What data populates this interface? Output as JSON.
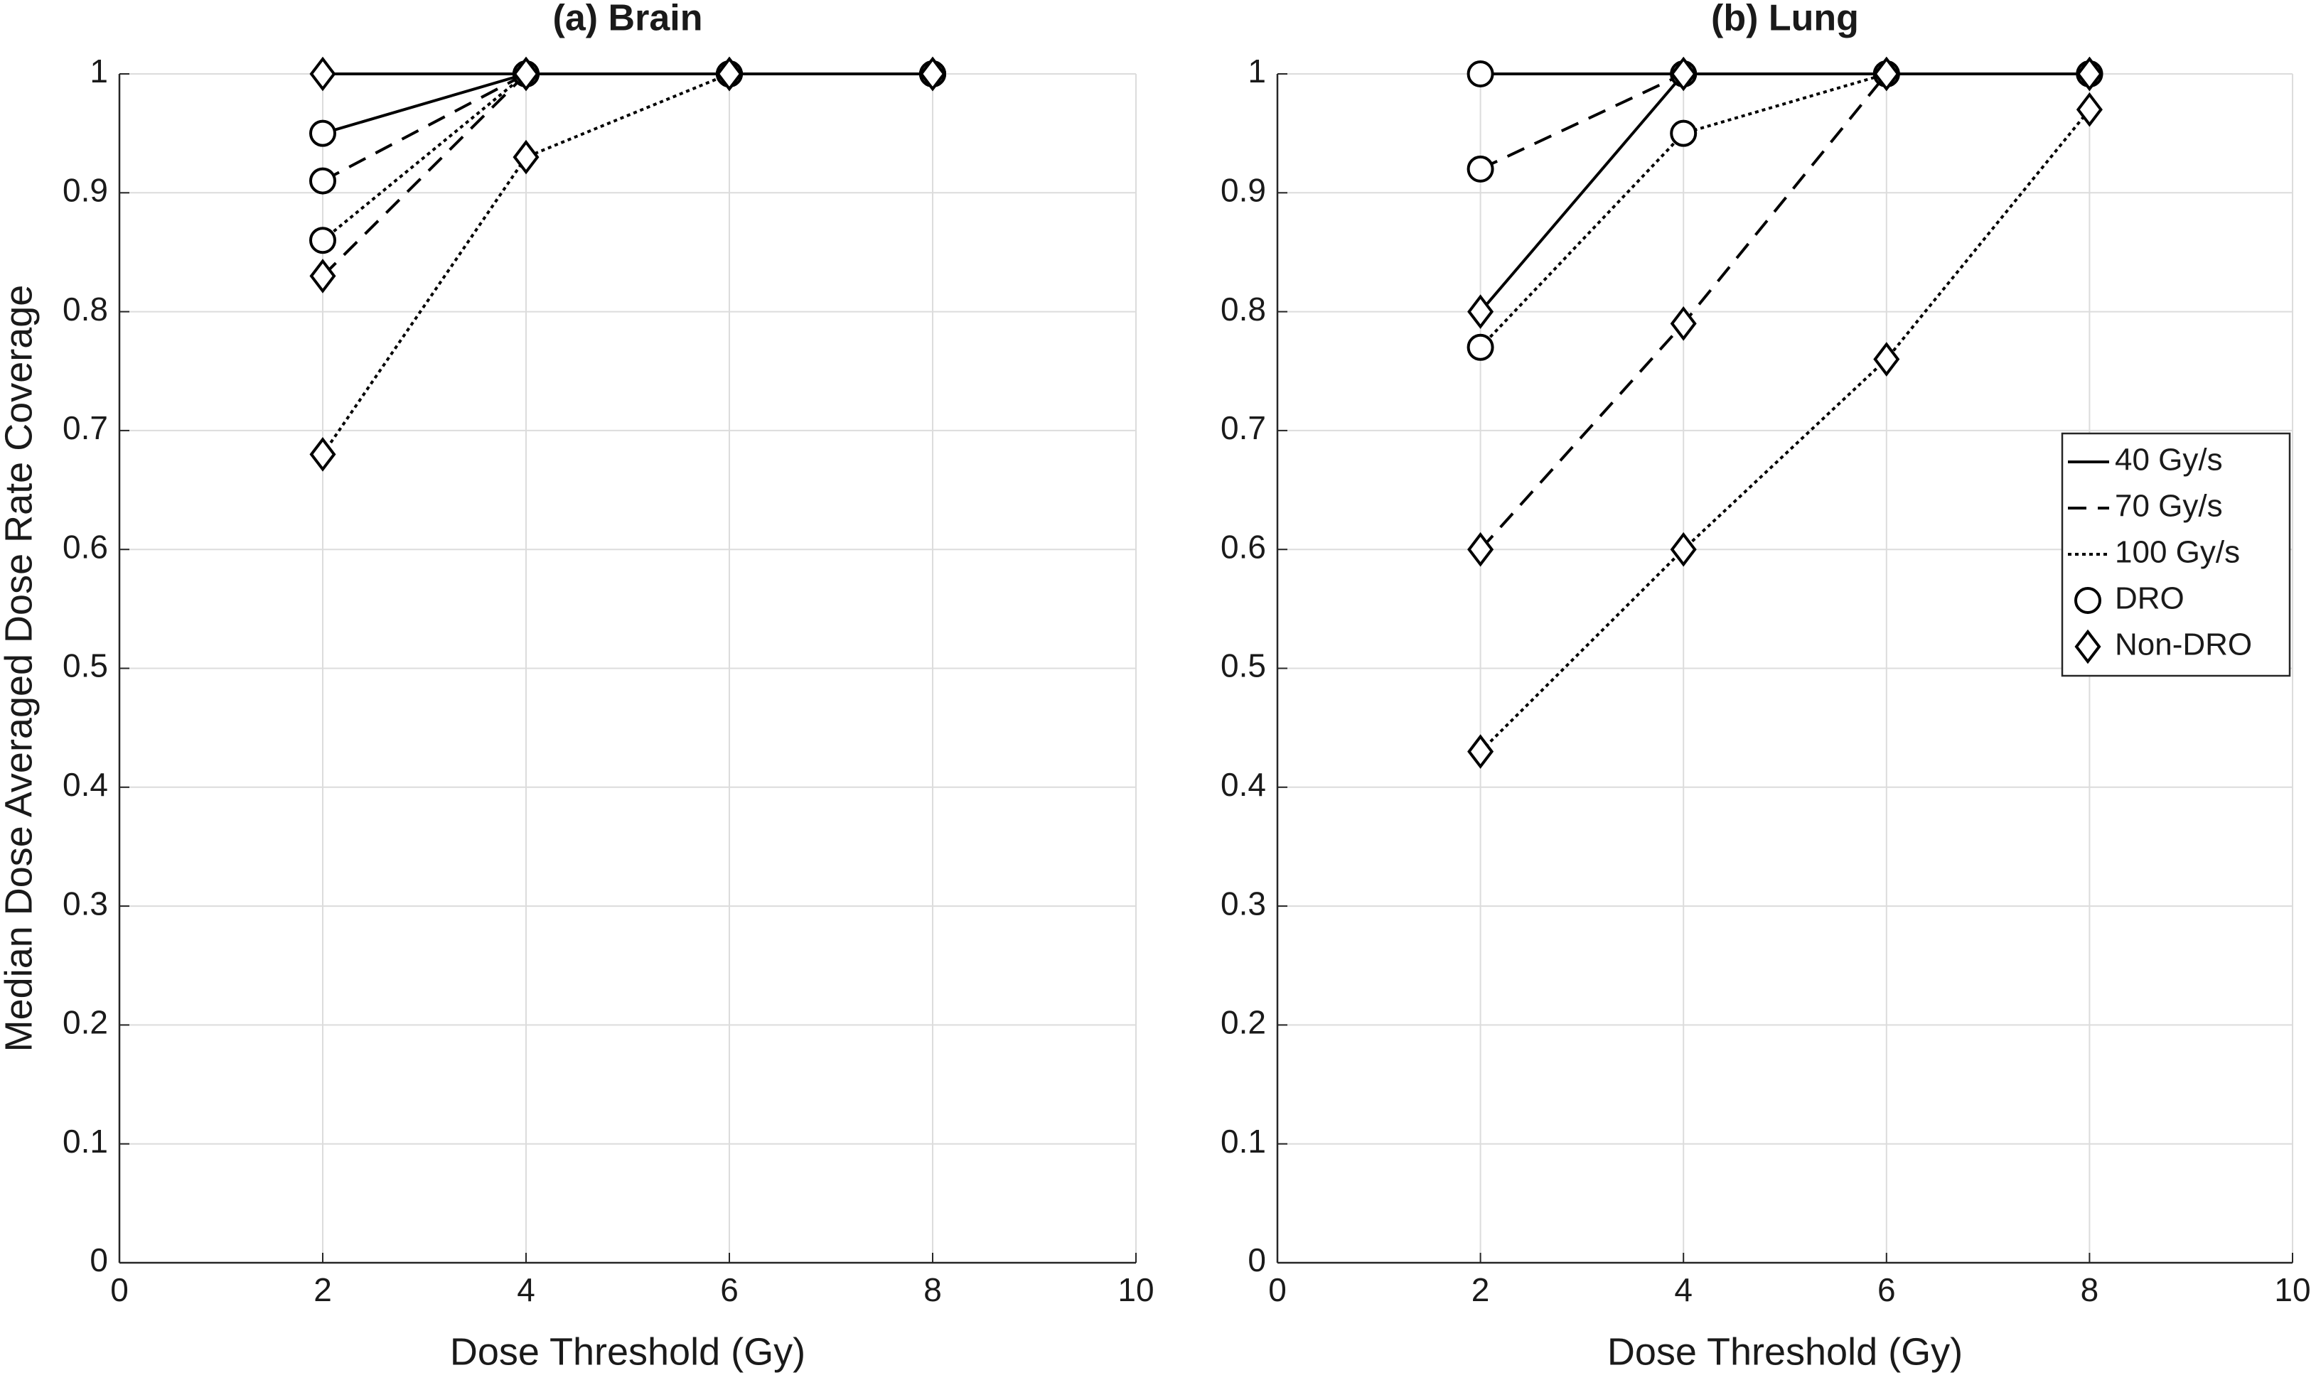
{
  "chart_data": [
    {
      "type": "line",
      "title": "(a) Brain",
      "xlabel": "Dose Threshold (Gy)",
      "ylabel": "Median Dose Averaged Dose Rate Coverage",
      "x": [
        2,
        4,
        6,
        8
      ],
      "xlim": [
        0,
        10
      ],
      "xticks": [
        0,
        2,
        4,
        6,
        8,
        10
      ],
      "ylim": [
        0,
        1
      ],
      "yticks": [
        0,
        0.1,
        0.2,
        0.3,
        0.4,
        0.5,
        0.6,
        0.7,
        0.8,
        0.9,
        1
      ],
      "grid": true,
      "series": [
        {
          "dash": "solid",
          "marker": "circle",
          "color": "#000000",
          "values": [
            0.95,
            1,
            1,
            1
          ]
        },
        {
          "dash": "dashed",
          "marker": "circle",
          "color": "#000000",
          "values": [
            0.91,
            1,
            1,
            1
          ]
        },
        {
          "dash": "dotted",
          "marker": "circle",
          "color": "#000000",
          "values": [
            0.86,
            1,
            1,
            1
          ]
        },
        {
          "dash": "solid",
          "marker": "diamond",
          "color": "#000000",
          "values": [
            1,
            1,
            1,
            1
          ]
        },
        {
          "dash": "dashed",
          "marker": "diamond",
          "color": "#000000",
          "values": [
            0.83,
            1,
            1,
            1
          ]
        },
        {
          "dash": "dotted",
          "marker": "diamond",
          "color": "#000000",
          "values": [
            0.68,
            0.93,
            1,
            1
          ]
        }
      ]
    },
    {
      "type": "line",
      "title": "(b) Lung",
      "xlabel": "Dose Threshold (Gy)",
      "x": [
        2,
        4,
        6,
        8
      ],
      "xlim": [
        0,
        10
      ],
      "xticks": [
        0,
        2,
        4,
        6,
        8,
        10
      ],
      "ylim": [
        0,
        1
      ],
      "yticks": [
        0,
        0.1,
        0.2,
        0.3,
        0.4,
        0.5,
        0.6,
        0.7,
        0.8,
        0.9,
        1
      ],
      "grid": true,
      "series": [
        {
          "dash": "solid",
          "marker": "circle",
          "color": "#000000",
          "values": [
            1,
            1,
            1,
            1
          ]
        },
        {
          "dash": "dashed",
          "marker": "circle",
          "color": "#000000",
          "values": [
            0.92,
            1,
            1,
            1
          ]
        },
        {
          "dash": "dotted",
          "marker": "circle",
          "color": "#000000",
          "values": [
            0.77,
            0.95,
            1,
            1
          ]
        },
        {
          "dash": "solid",
          "marker": "diamond",
          "color": "#000000",
          "values": [
            0.8,
            1,
            1,
            1
          ]
        },
        {
          "dash": "dashed",
          "marker": "diamond",
          "color": "#000000",
          "values": [
            0.6,
            0.79,
            1,
            1
          ]
        },
        {
          "dash": "dotted",
          "marker": "diamond",
          "color": "#000000",
          "values": [
            0.43,
            0.6,
            0.76,
            0.97
          ]
        }
      ],
      "legend": {
        "position": "east",
        "lines": [
          {
            "label": "40 Gy/s",
            "dash": "solid"
          },
          {
            "label": "70 Gy/s",
            "dash": "dashed"
          },
          {
            "label": "100 Gy/s",
            "dash": "dotted"
          }
        ],
        "markers": [
          {
            "label": "DRO",
            "marker": "circle"
          },
          {
            "label": "Non-DRO",
            "marker": "diamond"
          }
        ]
      }
    }
  ]
}
